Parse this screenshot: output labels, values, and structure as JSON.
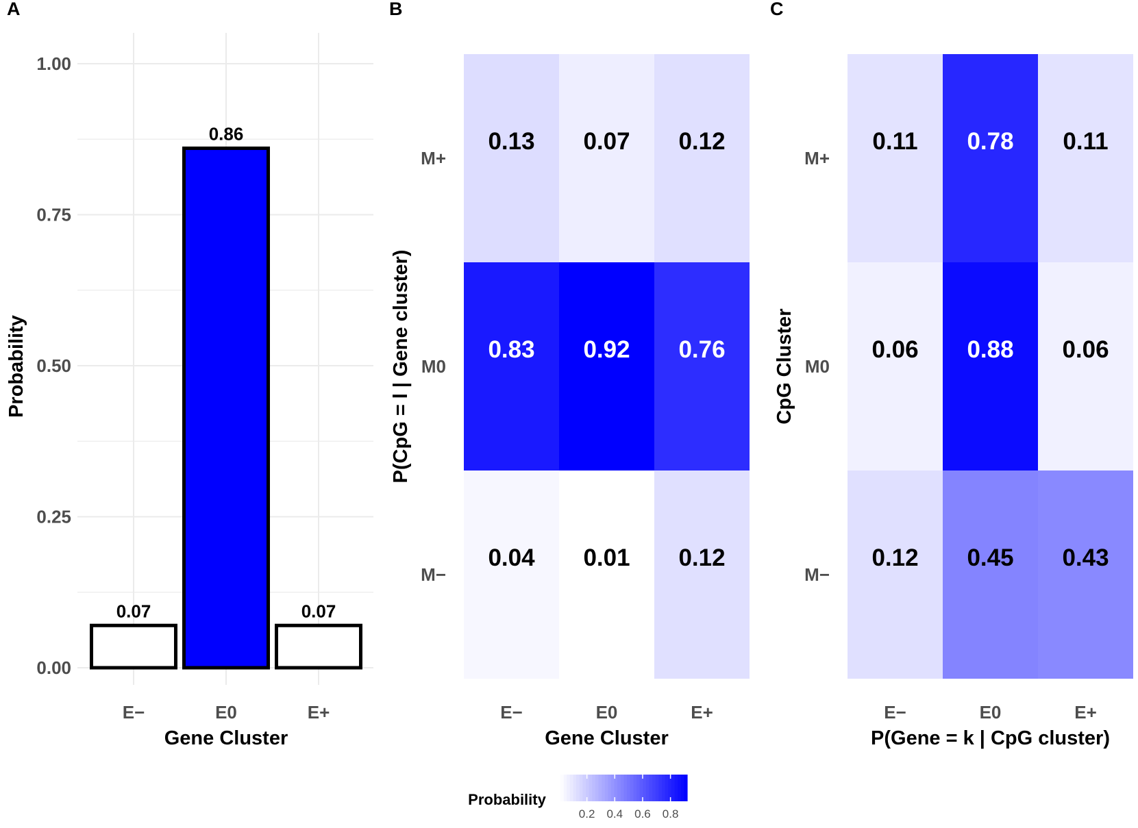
{
  "chart_data": [
    {
      "panel": "A",
      "type": "bar",
      "categories": [
        "E−",
        "E0",
        "E+"
      ],
      "values": [
        0.07,
        0.86,
        0.07
      ],
      "value_labels": [
        "0.07",
        "0.86",
        "0.07"
      ],
      "fill_colors": [
        "#ffffff",
        "#0000ff",
        "#ffffff"
      ],
      "xlabel": "Gene Cluster",
      "ylabel": "Probability",
      "ylim": [
        0,
        1.05
      ],
      "yticks": [
        0,
        0.25,
        0.5,
        0.75,
        1.0
      ],
      "ytick_labels": [
        "0.00",
        "0.25",
        "0.50",
        "0.75",
        "1.00"
      ],
      "grid": true
    },
    {
      "panel": "B",
      "type": "heatmap",
      "columns": [
        "E−",
        "E0",
        "E+"
      ],
      "rows": [
        "M+",
        "M0",
        "M−"
      ],
      "values": [
        [
          0.13,
          0.07,
          0.12
        ],
        [
          0.83,
          0.92,
          0.76
        ],
        [
          0.04,
          0.01,
          0.12
        ]
      ],
      "value_labels": [
        [
          "0.13",
          "0.07",
          "0.12"
        ],
        [
          "0.83",
          "0.92",
          "0.76"
        ],
        [
          "0.04",
          "0.01",
          "0.12"
        ]
      ],
      "xlabel": "Gene Cluster",
      "ylabel": "P(CpG = l | Gene cluster)"
    },
    {
      "panel": "C",
      "type": "heatmap",
      "columns": [
        "E−",
        "E0",
        "E+"
      ],
      "rows": [
        "M+",
        "M0",
        "M−"
      ],
      "values": [
        [
          0.11,
          0.78,
          0.11
        ],
        [
          0.06,
          0.88,
          0.06
        ],
        [
          0.12,
          0.45,
          0.43
        ]
      ],
      "value_labels": [
        [
          "0.11",
          "0.78",
          "0.11"
        ],
        [
          "0.06",
          "0.88",
          "0.06"
        ],
        [
          "0.12",
          "0.45",
          "0.43"
        ]
      ],
      "xlabel": "P(Gene = k | CpG cluster)",
      "ylabel": "CpG Cluster"
    }
  ],
  "legend": {
    "title": "Probability",
    "tick_values": [
      0.2,
      0.4,
      0.6,
      0.8
    ],
    "tick_labels": [
      "0.2",
      "0.4",
      "0.6",
      "0.8"
    ],
    "range": [
      0.01,
      0.92
    ],
    "low_color": "#ffffff",
    "high_color": "#0000ff"
  },
  "text_threshold": 0.6,
  "colors": {
    "light_text": "#ffffff",
    "dark_text": "#000000",
    "grid": "#ebebeb"
  }
}
